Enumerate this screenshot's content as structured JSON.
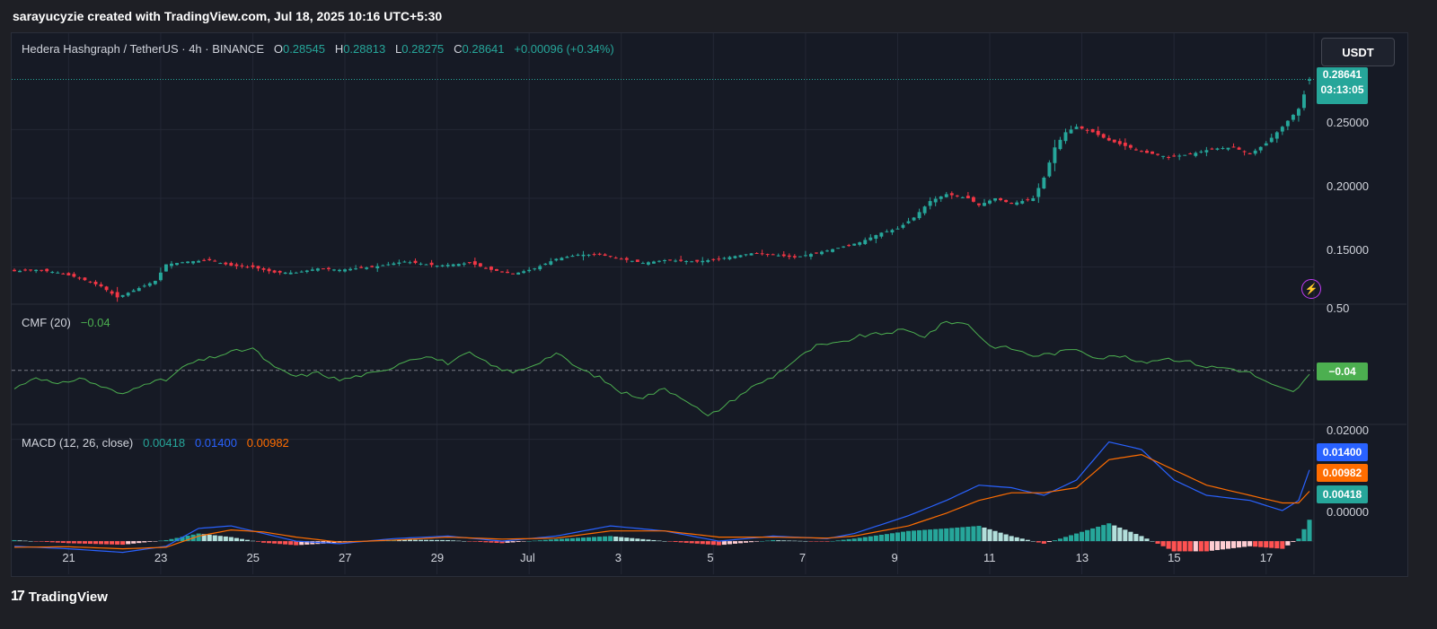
{
  "header": {
    "caption": "sarayucyzie created with TradingView.com, Jul 18, 2025 10:16 UTC+5:30"
  },
  "footer": {
    "brand": "TradingView",
    "logo_mark": "17"
  },
  "toolbar": {
    "currency": "USDT"
  },
  "icons": {
    "lightning": "lightning-icon",
    "logo": "tradingview-logo-icon"
  },
  "colors": {
    "up": "#26a69a",
    "down": "#f23645",
    "macd": "#2962ff",
    "signal": "#ff6d00",
    "cmf": "#4caf50",
    "background": "#161a25"
  },
  "main_legend": {
    "symbol": "Hedera Hashgraph / TetherUS · 4h · BINANCE",
    "o_label": "O",
    "o_value": "0.28545",
    "h_label": "H",
    "h_value": "0.28813",
    "l_label": "L",
    "l_value": "0.28275",
    "c_label": "C",
    "c_value": "0.28641",
    "change": "+0.00096 (+0.34%)"
  },
  "price_tag": {
    "price": "0.28641",
    "countdown": "03:13:05"
  },
  "cmf_legend": {
    "label": "CMF (20)",
    "value": "−0.04",
    "tag": "−0.04"
  },
  "macd_legend": {
    "label": "MACD (12, 26, close)",
    "hist": "0.00418",
    "macd": "0.01400",
    "signal": "0.00982"
  },
  "macd_tags": {
    "macd": "0.01400",
    "signal": "0.00982",
    "hist": "0.00418"
  },
  "price_axis": [
    "0.25000",
    "0.20000",
    "0.15000"
  ],
  "cmf_axis": [
    "0.50"
  ],
  "macd_axis": [
    "0.02000",
    "0.00000"
  ],
  "time_axis": [
    "21",
    "23",
    "25",
    "27",
    "29",
    "Jul",
    "3",
    "5",
    "7",
    "9",
    "11",
    "13",
    "15",
    "17"
  ],
  "chart_data": [
    {
      "type": "candlestick",
      "title": "Hedera Hashgraph / TetherUS · 4h · BINANCE",
      "x_ticks": [
        "21",
        "23",
        "25",
        "27",
        "29",
        "Jul",
        "3",
        "5",
        "7",
        "9",
        "11",
        "13",
        "15",
        "17"
      ],
      "ylim": [
        0.125,
        0.305
      ],
      "y_ticks": [
        0.15,
        0.2,
        0.25
      ],
      "close_anchors": [
        [
          0,
          0.147
        ],
        [
          4,
          0.148
        ],
        [
          8,
          0.146
        ],
        [
          12,
          0.142
        ],
        [
          16,
          0.136
        ],
        [
          19,
          0.128
        ],
        [
          22,
          0.133
        ],
        [
          26,
          0.14
        ],
        [
          28,
          0.152
        ],
        [
          32,
          0.154
        ],
        [
          36,
          0.155
        ],
        [
          40,
          0.151
        ],
        [
          44,
          0.15
        ],
        [
          48,
          0.146
        ],
        [
          52,
          0.146
        ],
        [
          56,
          0.149
        ],
        [
          60,
          0.148
        ],
        [
          66,
          0.15
        ],
        [
          72,
          0.154
        ],
        [
          78,
          0.151
        ],
        [
          84,
          0.153
        ],
        [
          88,
          0.148
        ],
        [
          92,
          0.145
        ],
        [
          96,
          0.149
        ],
        [
          100,
          0.156
        ],
        [
          104,
          0.159
        ],
        [
          108,
          0.159
        ],
        [
          112,
          0.156
        ],
        [
          116,
          0.153
        ],
        [
          120,
          0.155
        ],
        [
          126,
          0.154
        ],
        [
          130,
          0.156
        ],
        [
          136,
          0.16
        ],
        [
          140,
          0.159
        ],
        [
          144,
          0.157
        ],
        [
          150,
          0.162
        ],
        [
          156,
          0.168
        ],
        [
          160,
          0.175
        ],
        [
          163,
          0.178
        ],
        [
          166,
          0.186
        ],
        [
          169,
          0.198
        ],
        [
          172,
          0.203
        ],
        [
          176,
          0.2
        ],
        [
          178,
          0.195
        ],
        [
          181,
          0.2
        ],
        [
          184,
          0.196
        ],
        [
          188,
          0.2
        ],
        [
          190,
          0.215
        ],
        [
          192,
          0.237
        ],
        [
          194,
          0.248
        ],
        [
          196,
          0.252
        ],
        [
          199,
          0.248
        ],
        [
          202,
          0.242
        ],
        [
          205,
          0.238
        ],
        [
          209,
          0.233
        ],
        [
          213,
          0.23
        ],
        [
          217,
          0.232
        ],
        [
          221,
          0.236
        ],
        [
          225,
          0.237
        ],
        [
          228,
          0.232
        ],
        [
          231,
          0.24
        ],
        [
          234,
          0.252
        ],
        [
          237,
          0.265
        ],
        [
          239,
          0.286
        ]
      ],
      "last": {
        "open": 0.28545,
        "high": 0.28813,
        "low": 0.28275,
        "close": 0.28641
      }
    },
    {
      "type": "line",
      "title": "CMF (20)",
      "ylim": [
        -0.42,
        0.52
      ],
      "y_ticks": [
        0.5
      ],
      "zero_line": true,
      "series": [
        {
          "name": "CMF",
          "anchors": [
            [
              0,
              -0.15
            ],
            [
              4,
              -0.05
            ],
            [
              8,
              -0.12
            ],
            [
              12,
              -0.06
            ],
            [
              16,
              -0.13
            ],
            [
              20,
              -0.2
            ],
            [
              24,
              -0.1
            ],
            [
              28,
              -0.08
            ],
            [
              32,
              0.05
            ],
            [
              36,
              0.1
            ],
            [
              40,
              0.15
            ],
            [
              44,
              0.18
            ],
            [
              48,
              0.02
            ],
            [
              52,
              -0.05
            ],
            [
              56,
              -0.02
            ],
            [
              60,
              -0.08
            ],
            [
              64,
              -0.04
            ],
            [
              68,
              -0.01
            ],
            [
              72,
              0.08
            ],
            [
              76,
              0.12
            ],
            [
              80,
              0.06
            ],
            [
              84,
              0.14
            ],
            [
              88,
              0.04
            ],
            [
              92,
              -0.02
            ],
            [
              96,
              0.05
            ],
            [
              100,
              0.14
            ],
            [
              104,
              0.02
            ],
            [
              108,
              -0.06
            ],
            [
              112,
              -0.18
            ],
            [
              116,
              -0.22
            ],
            [
              120,
              -0.15
            ],
            [
              124,
              -0.24
            ],
            [
              128,
              -0.38
            ],
            [
              132,
              -0.26
            ],
            [
              136,
              -0.14
            ],
            [
              140,
              -0.05
            ],
            [
              144,
              0.08
            ],
            [
              148,
              0.2
            ],
            [
              152,
              0.22
            ],
            [
              156,
              0.28
            ],
            [
              160,
              0.3
            ],
            [
              164,
              0.33
            ],
            [
              168,
              0.28
            ],
            [
              172,
              0.4
            ],
            [
              176,
              0.38
            ],
            [
              180,
              0.2
            ],
            [
              184,
              0.18
            ],
            [
              188,
              0.12
            ],
            [
              192,
              0.14
            ],
            [
              196,
              0.18
            ],
            [
              200,
              0.1
            ],
            [
              204,
              0.12
            ],
            [
              208,
              0.06
            ],
            [
              212,
              0.1
            ],
            [
              216,
              0.08
            ],
            [
              220,
              0.03
            ],
            [
              224,
              0.02
            ],
            [
              228,
              -0.02
            ],
            [
              232,
              -0.12
            ],
            [
              236,
              -0.18
            ],
            [
              239,
              -0.04
            ]
          ]
        }
      ]
    },
    {
      "type": "line",
      "title": "MACD (12, 26, close)",
      "ylim": [
        -0.0058,
        0.0224
      ],
      "y_ticks": [
        0.02,
        0.0
      ],
      "series": [
        {
          "name": "MACD",
          "anchors": [
            [
              0,
              -0.001
            ],
            [
              10,
              -0.0015
            ],
            [
              20,
              -0.0022
            ],
            [
              28,
              -0.001
            ],
            [
              34,
              0.0025
            ],
            [
              40,
              0.003
            ],
            [
              46,
              0.0015
            ],
            [
              52,
              0.0
            ],
            [
              60,
              -0.0005
            ],
            [
              70,
              0.0005
            ],
            [
              80,
              0.001
            ],
            [
              90,
              0.0
            ],
            [
              100,
              0.001
            ],
            [
              110,
              0.003
            ],
            [
              120,
              0.002
            ],
            [
              130,
              0.0
            ],
            [
              140,
              0.001
            ],
            [
              150,
              0.0005
            ],
            [
              155,
              0.0015
            ],
            [
              165,
              0.005
            ],
            [
              172,
              0.008
            ],
            [
              178,
              0.011
            ],
            [
              184,
              0.0105
            ],
            [
              190,
              0.009
            ],
            [
              196,
              0.012
            ],
            [
              202,
              0.0195
            ],
            [
              208,
              0.018
            ],
            [
              214,
              0.012
            ],
            [
              220,
              0.009
            ],
            [
              228,
              0.008
            ],
            [
              234,
              0.006
            ],
            [
              237,
              0.008
            ],
            [
              239,
              0.014
            ]
          ]
        },
        {
          "name": "Signal",
          "anchors": [
            [
              0,
              -0.0012
            ],
            [
              10,
              -0.0011
            ],
            [
              20,
              -0.0015
            ],
            [
              28,
              -0.0012
            ],
            [
              34,
              0.001
            ],
            [
              40,
              0.0022
            ],
            [
              46,
              0.0018
            ],
            [
              52,
              0.0008
            ],
            [
              60,
              -0.0002
            ],
            [
              70,
              0.0002
            ],
            [
              80,
              0.0008
            ],
            [
              90,
              0.0004
            ],
            [
              100,
              0.0006
            ],
            [
              110,
              0.002
            ],
            [
              120,
              0.002
            ],
            [
              130,
              0.0008
            ],
            [
              140,
              0.0008
            ],
            [
              150,
              0.0006
            ],
            [
              155,
              0.001
            ],
            [
              165,
              0.003
            ],
            [
              172,
              0.0055
            ],
            [
              178,
              0.008
            ],
            [
              184,
              0.0095
            ],
            [
              190,
              0.0095
            ],
            [
              196,
              0.0105
            ],
            [
              202,
              0.016
            ],
            [
              208,
              0.017
            ],
            [
              214,
              0.014
            ],
            [
              220,
              0.011
            ],
            [
              228,
              0.009
            ],
            [
              234,
              0.0075
            ],
            [
              237,
              0.0075
            ],
            [
              239,
              0.0098
            ]
          ]
        }
      ],
      "histogram": "MACD − Signal"
    }
  ]
}
